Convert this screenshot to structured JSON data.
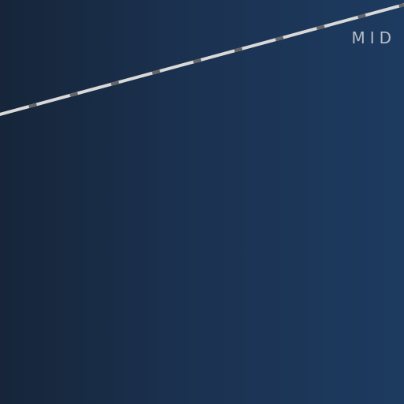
{
  "scene": {
    "label": "MID",
    "colors": {
      "background_left": "#162539",
      "background_right": "#1d3b60",
      "line_main": "#d9d9d9",
      "line_dash": "#666666",
      "label": "#b6bcc6"
    }
  }
}
